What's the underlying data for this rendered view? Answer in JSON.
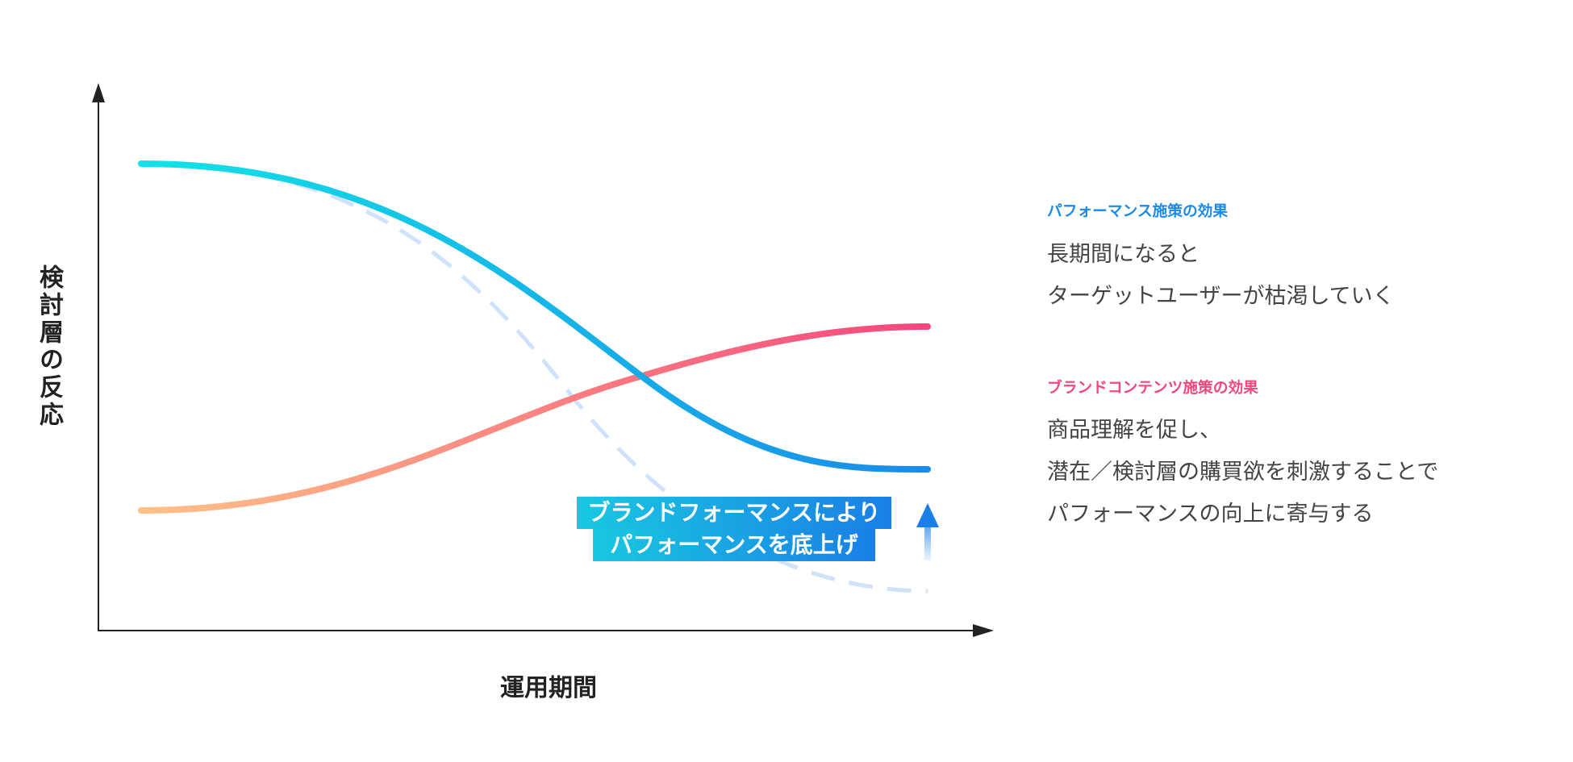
{
  "axes": {
    "y_label": "検討層の反応",
    "x_label": "運用期間"
  },
  "annotation": {
    "line1": "ブランドフォーマンスにより",
    "line2": "パフォーマンスを底上げ"
  },
  "performance": {
    "title": "パフォーマンス施策の効果",
    "lines": [
      "長期間になると",
      "ターゲットユーザーが枯渇していく"
    ]
  },
  "brand": {
    "title": "ブランドコンテンツ施策の効果",
    "lines": [
      "商品理解を促し、",
      "潜在／検討層の購買欲を刺激することで",
      "パフォーマンスの向上に寄与する"
    ]
  },
  "colors": {
    "performance_start": "#12e3e6",
    "performance_end": "#1a8be8",
    "brand_start": "#ffc187",
    "brand_end": "#f4477d",
    "dashed": "#cfe2fb",
    "arrow": "#1a7fe6",
    "axis": "#222222"
  }
}
